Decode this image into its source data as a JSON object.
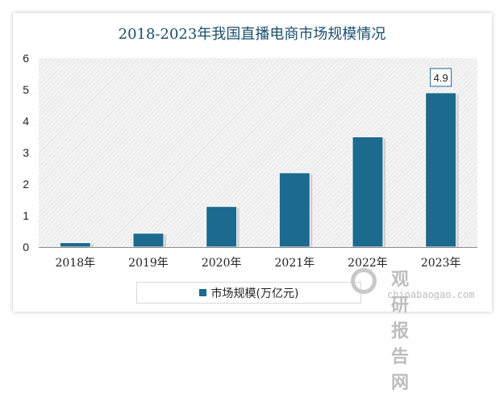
{
  "chart_data": {
    "type": "bar",
    "title": "2018-2023年我国直播电商市场规模情况",
    "categories": [
      "2018年",
      "2019年",
      "2020年",
      "2021年",
      "2022年",
      "2023年"
    ],
    "series": [
      {
        "name": "市场规模(万亿元)",
        "values": [
          0.14,
          0.44,
          1.29,
          2.36,
          3.5,
          4.9
        ],
        "color": "#1c6a8e"
      }
    ],
    "data_labels": [
      {
        "category": "2023年",
        "text": "4.9"
      }
    ],
    "ylim": [
      0,
      6
    ],
    "yticks": [
      "0",
      "1",
      "2",
      "3",
      "4",
      "5",
      "6"
    ],
    "xlabel": "",
    "ylabel": "",
    "grid": false,
    "legend": "bottom",
    "background_pattern": "diagonal-hatch"
  },
  "watermark": {
    "cn": "观研报告网",
    "en": "chinabaogao.com"
  }
}
